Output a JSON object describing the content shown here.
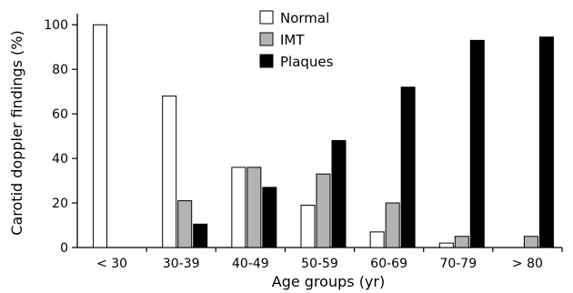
{
  "chart_data": {
    "type": "bar",
    "title": "",
    "xlabel": "Age groups  (yr)",
    "ylabel": "Carotid doppler findings (%)",
    "ylim": [
      0,
      105
    ],
    "yticks": [
      0,
      20,
      40,
      60,
      80,
      100
    ],
    "grid": false,
    "legend_position": "top-center",
    "categories": [
      "< 30",
      "30-39",
      "40-49",
      "50-59",
      "60-69",
      "70-79",
      "> 80"
    ],
    "series": [
      {
        "name": "Normal",
        "color": "#ffffff",
        "values": [
          100,
          68,
          36,
          19,
          7,
          2,
          0
        ]
      },
      {
        "name": "IMT",
        "color": "#b3b3b3",
        "values": [
          0,
          21,
          36,
          33,
          20,
          5,
          5
        ]
      },
      {
        "name": "Plaques",
        "color": "#000000",
        "values": [
          0,
          10.5,
          27,
          48,
          72,
          93,
          94.5
        ]
      }
    ]
  }
}
